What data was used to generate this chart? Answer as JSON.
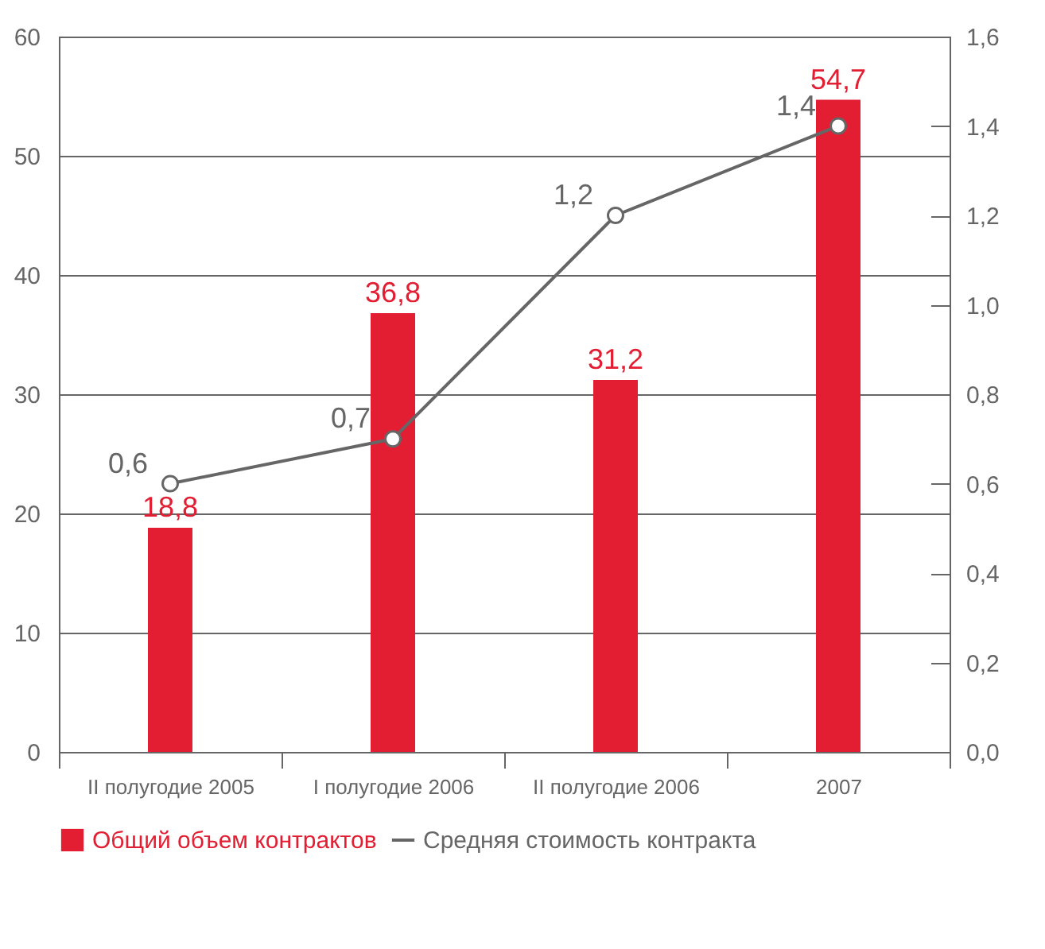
{
  "chart_data": {
    "type": "bar",
    "categories": [
      "II полугодие 2005",
      "I полугодие 2006",
      "II полугодие 2006",
      "2007"
    ],
    "series": [
      {
        "name": "Общий объем контрактов",
        "color": "#e31e32",
        "values": [
          18.8,
          36.8,
          31.2,
          54.7
        ],
        "value_labels": [
          "18,8",
          "36,8",
          "31,2",
          "54,7"
        ]
      },
      {
        "name": "Средняя стоимость контракта",
        "type": "line",
        "axis": "y2",
        "color": "#666666",
        "values": [
          0.6,
          0.7,
          1.2,
          1.4
        ],
        "value_labels": [
          "0,6",
          "0,7",
          "1,2",
          "1,4"
        ]
      }
    ],
    "ylim": [
      0,
      60
    ],
    "yticks": [
      0,
      10,
      20,
      30,
      40,
      50,
      60
    ],
    "y2lim": [
      0,
      1.6
    ],
    "y2ticks": [
      {
        "value": 0,
        "label": "0,0"
      },
      {
        "value": 0.2,
        "label": "0,2"
      },
      {
        "value": 0.4,
        "label": "0,4"
      },
      {
        "value": 0.6,
        "label": "0,6"
      },
      {
        "value": 0.8,
        "label": "0,8"
      },
      {
        "value": 1,
        "label": "1,0"
      },
      {
        "value": 1.2,
        "label": "1,2"
      },
      {
        "value": 1.4,
        "label": "1,4"
      },
      {
        "value": 1.6,
        "label": "1,6"
      }
    ],
    "grid": "y",
    "legend": "bottom",
    "marker": "circle",
    "line_style": "solid"
  }
}
